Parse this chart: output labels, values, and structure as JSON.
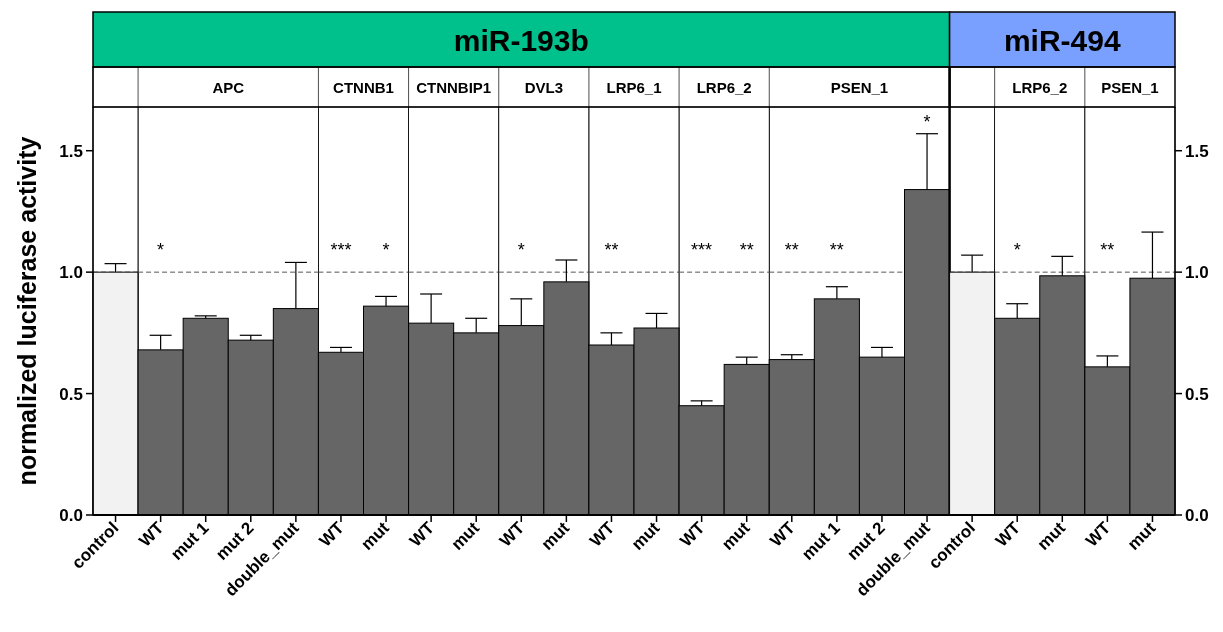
{
  "chart_data": [
    {
      "type": "other",
      "title": "miR-193b"
    },
    {
      "type": "bar",
      "ylabel": "normalized luciferase activity",
      "categories": [
        "control"
      ],
      "values": [
        1.0
      ],
      "color": "#f2f2f2",
      "errors": [
        [
          1.0,
          1.035
        ]
      ],
      "ylim": [
        0,
        1.68
      ],
      "yticks": [
        {
          "value": 0,
          "label": "0.0"
        },
        {
          "value": 0.5,
          "label": "0.5"
        },
        {
          "value": 1,
          "label": "1.0"
        },
        {
          "value": 1.5,
          "label": "1.5"
        }
      ],
      "ref_lines": [
        {
          "axis": "y",
          "value": 1,
          "line_style": "dashed"
        }
      ]
    },
    {
      "type": "bar",
      "subtitle": "APC",
      "categories": [
        "WT",
        "mut 1",
        "mut 2",
        "double_mut"
      ],
      "values": [
        0.68,
        0.81,
        0.72,
        0.85
      ],
      "color": "#666666",
      "errors": [
        [
          0.68,
          0.74
        ],
        [
          0.81,
          0.82
        ],
        [
          0.72,
          0.74
        ],
        [
          0.85,
          1.04
        ]
      ],
      "ylim": [
        0,
        1.68
      ],
      "tick_labels": "x",
      "ref_lines": [
        {
          "axis": "y",
          "value": 1,
          "line_style": "dashed"
        }
      ],
      "annotations": [
        "*",
        null,
        null,
        null
      ]
    },
    {
      "type": "bar",
      "subtitle": "CTNNB1",
      "categories": [
        "WT",
        "mut"
      ],
      "values": [
        0.67,
        0.86
      ],
      "color": "#666666",
      "errors": [
        [
          0.67,
          0.69
        ],
        [
          0.86,
          0.9
        ]
      ],
      "ylim": [
        0,
        1.68
      ],
      "tick_labels": "x",
      "ref_lines": [
        {
          "axis": "y",
          "value": 1,
          "line_style": "dashed"
        }
      ],
      "annotations": [
        "***",
        "*"
      ]
    },
    {
      "type": "bar",
      "subtitle": "CTNNBIP1",
      "categories": [
        "WT",
        "mut"
      ],
      "values": [
        0.79,
        0.75
      ],
      "color": "#666666",
      "errors": [
        [
          0.79,
          0.91
        ],
        [
          0.75,
          0.81
        ]
      ],
      "ylim": [
        0,
        1.68
      ],
      "tick_labels": "x",
      "ref_lines": [
        {
          "axis": "y",
          "value": 1,
          "line_style": "dashed"
        }
      ]
    },
    {
      "type": "bar",
      "subtitle": "DVL3",
      "categories": [
        "WT",
        "mut"
      ],
      "values": [
        0.78,
        0.96
      ],
      "color": "#666666",
      "errors": [
        [
          0.78,
          0.89
        ],
        [
          0.96,
          1.05
        ]
      ],
      "ylim": [
        0,
        1.68
      ],
      "tick_labels": "x",
      "ref_lines": [
        {
          "axis": "y",
          "value": 1,
          "line_style": "dashed"
        }
      ],
      "annotations": [
        "*",
        null
      ]
    },
    {
      "type": "bar",
      "subtitle": "LRP6_1",
      "categories": [
        "WT",
        "mut"
      ],
      "values": [
        0.7,
        0.77
      ],
      "color": "#666666",
      "errors": [
        [
          0.7,
          0.75
        ],
        [
          0.77,
          0.83
        ]
      ],
      "ylim": [
        0,
        1.68
      ],
      "tick_labels": "x",
      "ref_lines": [
        {
          "axis": "y",
          "value": 1,
          "line_style": "dashed"
        }
      ],
      "annotations": [
        "**",
        null
      ]
    },
    {
      "type": "bar",
      "subtitle": "LRP6_2",
      "categories": [
        "WT",
        "mut"
      ],
      "values": [
        0.45,
        0.62
      ],
      "color": "#666666",
      "errors": [
        [
          0.45,
          0.47
        ],
        [
          0.62,
          0.65
        ]
      ],
      "ylim": [
        0,
        1.68
      ],
      "tick_labels": "x",
      "ref_lines": [
        {
          "axis": "y",
          "value": 1,
          "line_style": "dashed"
        }
      ],
      "annotations": [
        "***",
        "**"
      ]
    },
    {
      "type": "bar",
      "subtitle": "PSEN_1",
      "categories": [
        "WT",
        "mut 1",
        "mut 2",
        "double_mut"
      ],
      "values": [
        0.64,
        0.89,
        0.65,
        1.34
      ],
      "color": "#666666",
      "errors": [
        [
          0.64,
          0.66
        ],
        [
          0.89,
          0.94
        ],
        [
          0.65,
          0.69
        ],
        [
          1.34,
          1.57
        ]
      ],
      "ylim": [
        0,
        1.68
      ],
      "tick_labels": "x",
      "ref_lines": [
        {
          "axis": "y",
          "value": 1,
          "line_style": "dashed"
        }
      ],
      "annotations": [
        "**",
        "**",
        null,
        "*"
      ]
    },
    {
      "type": "other",
      "title": "miR-494"
    },
    {
      "type": "bar",
      "categories": [
        "control"
      ],
      "values": [
        1.0
      ],
      "color": "#f2f2f2",
      "errors": [
        [
          1.0,
          1.07
        ]
      ],
      "ylim": [
        0,
        1.68
      ],
      "tick_labels": "x",
      "ref_lines": [
        {
          "axis": "y",
          "value": 1,
          "line_style": "dashed"
        }
      ]
    },
    {
      "type": "bar",
      "subtitle": "LRP6_2",
      "categories": [
        "WT",
        "mut"
      ],
      "values": [
        0.81,
        0.985
      ],
      "color": "#666666",
      "errors": [
        [
          0.81,
          0.87
        ],
        [
          0.985,
          1.065
        ]
      ],
      "ylim": [
        0,
        1.68
      ],
      "tick_labels": "x",
      "ref_lines": [
        {
          "axis": "y",
          "value": 1,
          "line_style": "dashed"
        }
      ],
      "annotations": [
        "*",
        null
      ]
    },
    {
      "type": "bar",
      "subtitle": "PSEN_1",
      "categories": [
        "WT",
        "mut"
      ],
      "values": [
        0.61,
        0.975
      ],
      "color": "#666666",
      "errors": [
        [
          0.61,
          0.655
        ],
        [
          0.975,
          1.165
        ]
      ],
      "ylim": [
        0,
        1.68
      ],
      "yticks": [
        {
          "value": 0,
          "label": "0.0"
        },
        {
          "value": 0.5,
          "label": "0.5"
        },
        {
          "value": 1,
          "label": "1.0"
        },
        {
          "value": 1.5,
          "label": "1.5"
        }
      ],
      "ref_lines": [
        {
          "axis": "y",
          "value": 1,
          "line_style": "dashed"
        }
      ],
      "annotations": [
        "**",
        null
      ]
    }
  ]
}
